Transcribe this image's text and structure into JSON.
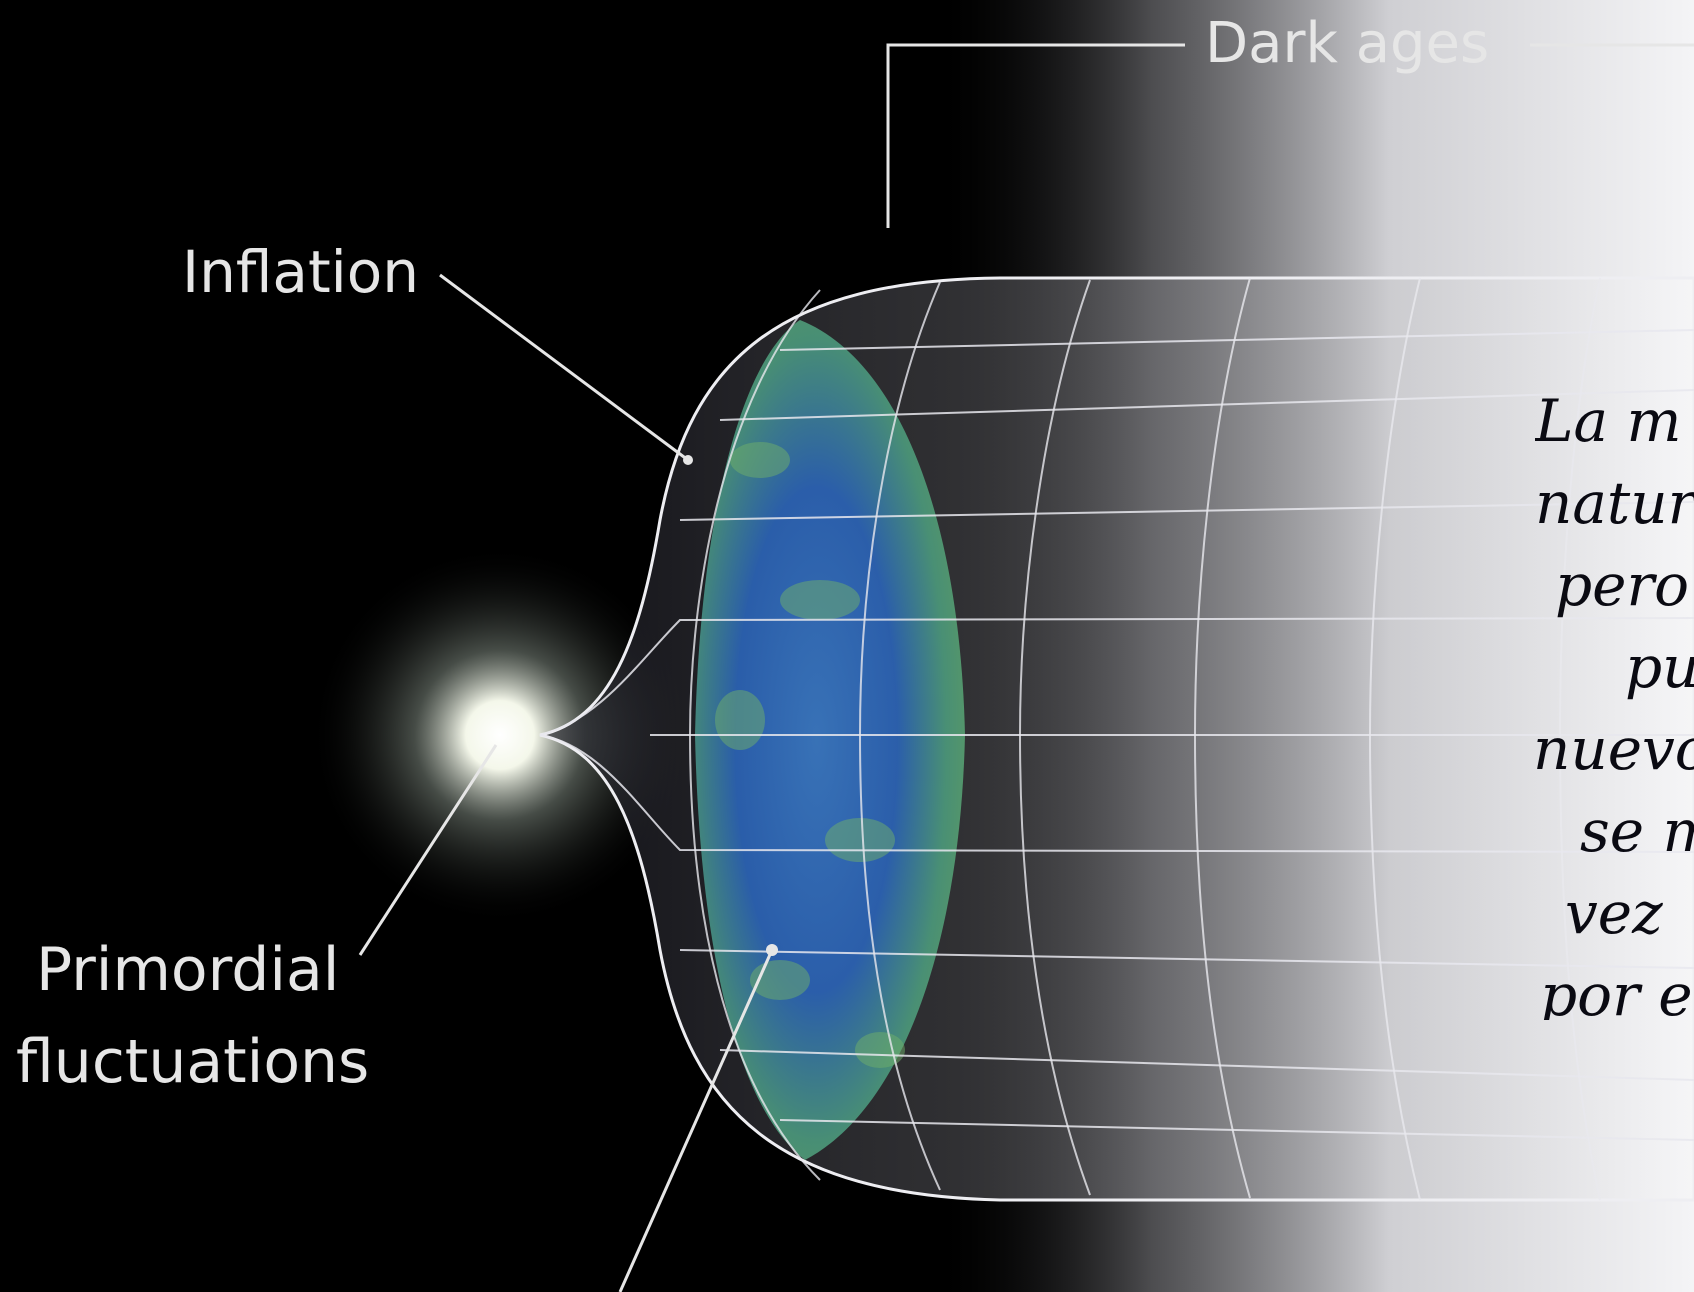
{
  "labels": {
    "dark_ages": "Dark ages",
    "inflation": "Inflation",
    "primordial_line1": "Primordial",
    "primordial_line2": "fluctuations"
  },
  "handwritten_note": {
    "lines": [
      "La m",
      "natur",
      "pero",
      "pu",
      "nuevo",
      "se m",
      "vez",
      "por e"
    ]
  },
  "colors": {
    "background": "#000000",
    "grid_lines": "#e8e8ee",
    "label_text": "#e6e6e6",
    "note_text": "#0a0a12",
    "cmb_blue": "#2b64b8",
    "cmb_green": "#5fa56a"
  }
}
